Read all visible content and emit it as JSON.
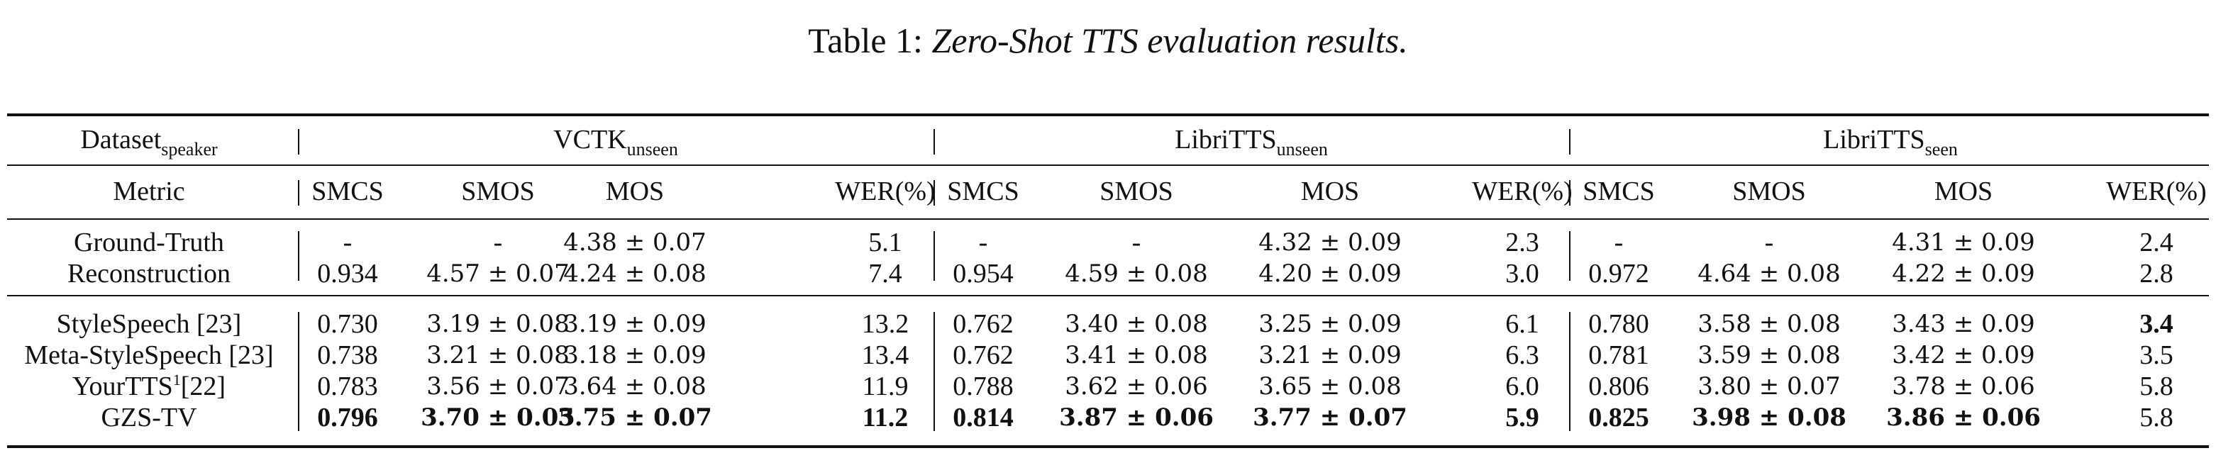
{
  "caption": {
    "prefix": "Table 1: ",
    "title": "Zero-Shot TTS evaluation results."
  },
  "header": {
    "first": {
      "main": "Dataset",
      "sub": "speaker"
    },
    "groups": [
      {
        "main": "VCTK",
        "sub": "unseen"
      },
      {
        "main": "LibriTTS",
        "sub": "unseen"
      },
      {
        "main": "LibriTTS",
        "sub": "seen"
      }
    ],
    "metric_label": "Metric",
    "metrics": [
      "SMCS",
      "SMOS",
      "MOS",
      "WER(%)"
    ]
  },
  "rows": [
    {
      "name": "Ground-Truth",
      "sup": "",
      "cite": "",
      "values": [
        "-",
        "-",
        "4.38 ± 0.07",
        "5.1",
        "-",
        "-",
        "4.32 ± 0.09",
        "2.3",
        "-",
        "-",
        "4.31 ± 0.09",
        "2.4"
      ],
      "bold": []
    },
    {
      "name": "Reconstruction",
      "sup": "",
      "cite": "",
      "values": [
        "0.934",
        "4.57 ± 0.07",
        "4.24 ± 0.08",
        "7.4",
        "0.954",
        "4.59 ± 0.08",
        "4.20 ± 0.09",
        "3.0",
        "0.972",
        "4.64 ± 0.08",
        "4.22 ± 0.09",
        "2.8"
      ],
      "bold": []
    },
    {
      "name": "StyleSpeech",
      "sup": "",
      "cite": " [23]",
      "values": [
        "0.730",
        "3.19 ± 0.08",
        "3.19 ± 0.09",
        "13.2",
        "0.762",
        "3.40 ± 0.08",
        "3.25 ± 0.09",
        "6.1",
        "0.780",
        "3.58 ± 0.08",
        "3.43 ± 0.09",
        "3.4"
      ],
      "bold": [
        11
      ]
    },
    {
      "name": "Meta-StyleSpeech",
      "sup": "",
      "cite": " [23]",
      "values": [
        "0.738",
        "3.21 ± 0.08",
        "3.18 ± 0.09",
        "13.4",
        "0.762",
        "3.41 ± 0.08",
        "3.21 ± 0.09",
        "6.3",
        "0.781",
        "3.59 ± 0.08",
        "3.42 ± 0.09",
        "3.5"
      ],
      "bold": []
    },
    {
      "name": "YourTTS",
      "sup": "1",
      "cite": "[22]",
      "values": [
        "0.783",
        "3.56 ± 0.07",
        "3.64 ± 0.08",
        "11.9",
        "0.788",
        "3.62 ± 0.06",
        "3.65 ± 0.08",
        "6.0",
        "0.806",
        "3.80 ± 0.07",
        "3.78 ± 0.06",
        "5.8"
      ],
      "bold": []
    },
    {
      "name": "GZS-TV",
      "sup": "",
      "cite": "",
      "values": [
        "0.796",
        "3.70 ± 0.05",
        "3.75 ± 0.07",
        "11.2",
        "0.814",
        "3.87 ± 0.06",
        "3.77 ± 0.07",
        "5.9",
        "0.825",
        "3.98 ± 0.08",
        "3.86 ± 0.06",
        "5.8"
      ],
      "bold": [
        0,
        1,
        2,
        3,
        4,
        5,
        6,
        7,
        8,
        9,
        10
      ]
    }
  ]
}
